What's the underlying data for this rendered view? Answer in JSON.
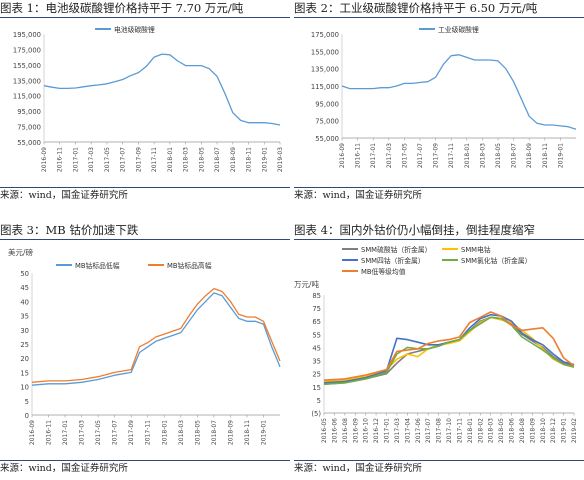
{
  "panels": [
    {
      "title": "图表 1：电池级碳酸锂价格持平于 7.70 万元/吨",
      "source": "来源：wind，国金证券研究所"
    },
    {
      "title": "图表 2：工业级碳酸锂价格持平于 6.50 万元/吨",
      "source": "来源：wind，国金证券研究所"
    },
    {
      "title": "图表 3：MB 钴价加速下跌",
      "source": "来源：wind，国金证券研究所"
    },
    {
      "title": "图表 4：国内外钴价仍小幅倒挂，倒挂程度缩窄",
      "source": "来源：wind，国金证券研究所"
    }
  ],
  "chart_data": [
    {
      "type": "line",
      "title": "",
      "xlabel": "",
      "ylabel": "",
      "ylim": [
        55000,
        195000
      ],
      "yticks": [
        55000,
        75000,
        95000,
        115000,
        135000,
        155000,
        175000,
        195000
      ],
      "ytick_labels": [
        "55,000",
        "75,000",
        "95,000",
        "115,000",
        "135,000",
        "155,000",
        "175,000",
        "195,000"
      ],
      "xtick_labels": [
        "2016-09",
        "2016-11",
        "2017-01",
        "2017-03",
        "2017-05",
        "2017-07",
        "2017-09",
        "2017-11",
        "2018-01",
        "2018-03",
        "2018-05",
        "2018-07",
        "2018-09",
        "2018-11",
        "2019-01",
        "2019-03"
      ],
      "legend": "top-center",
      "grid": false,
      "series": [
        {
          "name": "电池级碳酸锂",
          "color": "#5b9bd5",
          "x": [
            0,
            0.5,
            1,
            1.5,
            2,
            2.5,
            3,
            3.5,
            4,
            4.5,
            5,
            5.5,
            6,
            6.5,
            7,
            7.5,
            8,
            8.5,
            9,
            9.5,
            10,
            10.5,
            11,
            11.5,
            12,
            12.5,
            13,
            13.5,
            14,
            14.5,
            15
          ],
          "values": [
            128000,
            126000,
            124500,
            124500,
            125000,
            126500,
            128000,
            129000,
            130500,
            133000,
            136000,
            141000,
            145000,
            153000,
            165000,
            169000,
            168000,
            160000,
            154000,
            154000,
            154000,
            150000,
            140000,
            118000,
            93000,
            83000,
            80000,
            80000,
            80000,
            79000,
            77000
          ]
        }
      ]
    },
    {
      "type": "line",
      "title": "",
      "xlabel": "",
      "ylabel": "",
      "ylim": [
        55000,
        175000
      ],
      "yticks": [
        55000,
        75000,
        95000,
        115000,
        135000,
        155000,
        175000
      ],
      "ytick_labels": [
        "55,000",
        "75,000",
        "95,000",
        "115,000",
        "135,000",
        "155,000",
        "175,000"
      ],
      "xtick_labels": [
        "2016-09",
        "2016-11",
        "2017-01",
        "2017-03",
        "2017-05",
        "2017-07",
        "2017-09",
        "2017-11",
        "2018-01",
        "2018-03",
        "2018-05",
        "2018-07",
        "2018-09",
        "2018-11",
        "2019-01"
      ],
      "legend": "top-center",
      "grid": false,
      "series": [
        {
          "name": "工业级碳酸锂",
          "color": "#5b9bd5",
          "x": [
            0,
            0.5,
            1,
            1.5,
            2,
            2.5,
            3,
            3.5,
            4,
            4.5,
            5,
            5.5,
            6,
            6.5,
            7,
            7.5,
            8,
            8.5,
            9,
            9.5,
            10,
            10.5,
            11,
            11.5,
            12,
            12.5,
            13,
            13.5,
            14,
            14.5,
            15
          ],
          "values": [
            115000,
            112000,
            112000,
            112000,
            112000,
            113000,
            113000,
            115000,
            118000,
            118000,
            119000,
            120000,
            125000,
            140000,
            150000,
            151000,
            148000,
            145000,
            145000,
            145000,
            144000,
            135000,
            120000,
            100000,
            80000,
            72000,
            70000,
            70000,
            69000,
            68000,
            65000
          ]
        }
      ]
    },
    {
      "type": "line",
      "title": "",
      "xlabel": "",
      "ylabel": "美元/磅",
      "ylim": [
        0,
        50
      ],
      "yticks": [
        0,
        5,
        10,
        15,
        20,
        25,
        30,
        35,
        40,
        45,
        50
      ],
      "ytick_labels": [
        "0",
        "5",
        "10",
        "15",
        "20",
        "25",
        "30",
        "35",
        "40",
        "45",
        "50"
      ],
      "xtick_labels": [
        "2016-09",
        "2016-11",
        "2017-01",
        "2017-03",
        "2017-05",
        "2017-07",
        "2017-09",
        "2017-11",
        "2018-01",
        "2018-03",
        "2018-05",
        "2018-07",
        "2018-09",
        "2018-11",
        "2019-01"
      ],
      "legend": "top-center",
      "grid": false,
      "series": [
        {
          "name": "MB钴标品低幅",
          "color": "#5b9bd5",
          "x": [
            0,
            1,
            2,
            3,
            4,
            5,
            6,
            6.5,
            7,
            7.5,
            8,
            8.5,
            9,
            9.5,
            10,
            10.5,
            11,
            11.5,
            12,
            12.5,
            13,
            13.5,
            14,
            14.5,
            15
          ],
          "values": [
            10.5,
            11,
            11,
            11.5,
            12.5,
            14,
            15,
            22,
            24,
            26,
            27,
            28,
            29,
            33,
            37,
            40,
            43,
            42,
            38,
            34,
            33,
            33,
            32,
            24,
            17
          ]
        },
        {
          "name": "MB钴标品高幅",
          "color": "#ed7d31",
          "x": [
            0,
            1,
            2,
            3,
            4,
            5,
            6,
            6.5,
            7,
            7.5,
            8,
            8.5,
            9,
            9.5,
            10,
            10.5,
            11,
            11.5,
            12,
            12.5,
            13,
            13.5,
            14,
            14.5,
            15
          ],
          "values": [
            11.5,
            12,
            12,
            12.5,
            13.5,
            15,
            16,
            24,
            25.5,
            27.5,
            28.5,
            29.5,
            30.5,
            35,
            39,
            42,
            44.5,
            43.5,
            40,
            35.5,
            34.5,
            34.5,
            33,
            26,
            19
          ]
        }
      ]
    },
    {
      "type": "line",
      "title": "",
      "xlabel": "",
      "ylabel": "万元/吨",
      "ylim": [
        -5,
        85
      ],
      "yticks": [
        -5,
        5,
        15,
        25,
        35,
        45,
        55,
        65,
        75,
        85
      ],
      "ytick_labels": [
        "(5)",
        "5",
        "15",
        "25",
        "35",
        "45",
        "55",
        "65",
        "75",
        "85"
      ],
      "xtick_labels": [
        "2016-05",
        "2016-06",
        "2016-08",
        "2016-09",
        "2016-10",
        "2016-12",
        "2017-01",
        "2017-03",
        "2017-04",
        "2017-06",
        "2017-07",
        "2017-08",
        "2017-10",
        "2017-11",
        "2018-01",
        "2018-02",
        "2018-03",
        "2018-05",
        "2018-06",
        "2018-08",
        "2018-09",
        "2018-10",
        "2018-12",
        "2019-01",
        "2019-02"
      ],
      "legend": "top",
      "grid": false,
      "series": [
        {
          "name": "SMM硫酸钴（折金属）",
          "color": "#7f7f7f",
          "x": [
            0,
            2,
            4,
            6,
            7,
            8,
            9,
            10,
            11,
            12,
            13,
            14,
            15,
            16,
            17,
            18,
            19,
            20,
            21,
            22,
            23,
            24
          ],
          "values": [
            17,
            18,
            21,
            25,
            33,
            40,
            42,
            44,
            46,
            49,
            51,
            58,
            65,
            68,
            67,
            63,
            55,
            50,
            45,
            38,
            33,
            31
          ]
        },
        {
          "name": "SMM电钴",
          "color": "#ffc000",
          "x": [
            0,
            2,
            4,
            6,
            7,
            8,
            9,
            10,
            11,
            12,
            13,
            14,
            15,
            16,
            17,
            18,
            19,
            20,
            21,
            22,
            23,
            24
          ],
          "values": [
            19,
            20,
            23,
            28,
            36,
            40,
            38,
            44,
            47,
            48,
            50,
            57,
            64,
            68,
            66,
            64,
            58,
            52,
            44,
            36,
            32,
            30
          ]
        },
        {
          "name": "SMM四钴（折金属）",
          "color": "#4472c4",
          "x": [
            0,
            2,
            4,
            6,
            7,
            8,
            9,
            10,
            11,
            12,
            13,
            14,
            15,
            16,
            17,
            18,
            19,
            20,
            21,
            22,
            23,
            24
          ],
          "values": [
            18,
            19,
            22,
            27,
            52,
            51,
            49,
            47,
            47,
            49,
            51,
            60,
            67,
            70,
            69,
            65,
            56,
            51,
            47,
            40,
            34,
            32
          ]
        },
        {
          "name": "SMM氯化钴（折金属）",
          "color": "#70ad47",
          "x": [
            0,
            2,
            4,
            6,
            7,
            8,
            9,
            10,
            11,
            12,
            13,
            14,
            15,
            16,
            17,
            18,
            19,
            20,
            21,
            22,
            23,
            24
          ],
          "values": [
            17,
            18,
            21,
            26,
            40,
            45,
            44,
            44,
            46,
            49,
            51,
            58,
            63,
            68,
            67,
            62,
            53,
            48,
            43,
            37,
            32,
            30
          ]
        },
        {
          "name": "MB低等级均值",
          "color": "#ed7d31",
          "x": [
            0,
            2,
            4,
            6,
            7,
            8,
            9,
            10,
            11,
            12,
            13,
            14,
            15,
            16,
            17,
            18,
            19,
            20,
            21,
            22,
            23,
            24
          ],
          "values": [
            20,
            21,
            24,
            28,
            42,
            43,
            44,
            48,
            50,
            51,
            53,
            64,
            68,
            72,
            69,
            62,
            58,
            59,
            60,
            52,
            37,
            31
          ]
        }
      ]
    }
  ]
}
